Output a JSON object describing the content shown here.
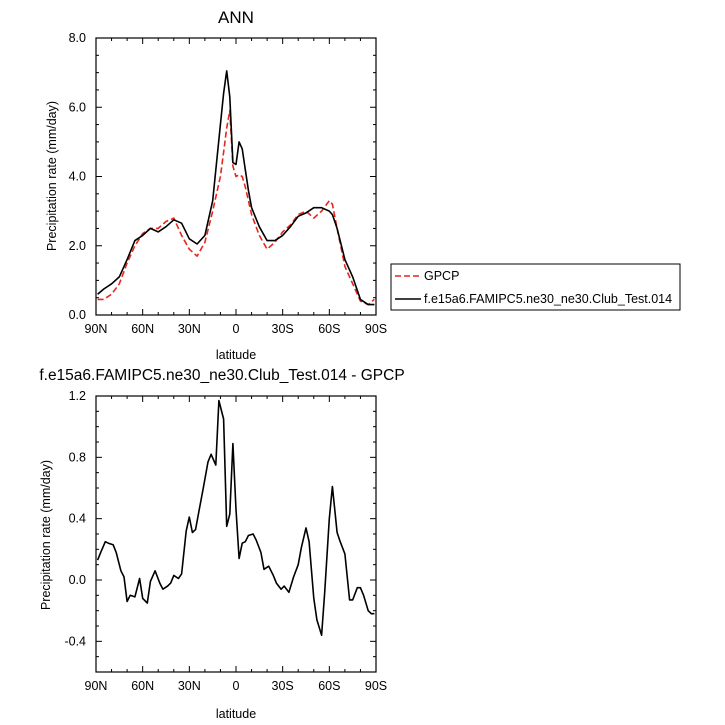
{
  "chart_data": [
    {
      "type": "line",
      "title": "ANN",
      "xlabel": "latitude",
      "ylabel": "Precipitation rate (mm/day)",
      "xlim": [
        90,
        -90
      ],
      "ylim": [
        0,
        8
      ],
      "x_ticks": [
        90,
        60,
        30,
        0,
        -30,
        -60,
        -90
      ],
      "x_tick_labels": [
        "90N",
        "60N",
        "30N",
        "0",
        "30S",
        "60S",
        "90S"
      ],
      "y_ticks": [
        0,
        2,
        4,
        6,
        8
      ],
      "y_tick_labels": [
        "0.0",
        "2.0",
        "4.0",
        "6.0",
        "8.0"
      ],
      "legend_position": "right, outside plot",
      "series": [
        {
          "name": "GPCP",
          "color": "#e8251f",
          "dash": "dashed",
          "x": [
            89,
            85,
            80,
            75,
            70,
            65,
            60,
            55,
            50,
            45,
            40,
            35,
            30,
            25,
            20,
            15,
            10,
            8,
            6,
            4,
            2,
            0,
            -2,
            -4,
            -6,
            -8,
            -10,
            -15,
            -20,
            -25,
            -30,
            -35,
            -40,
            -45,
            -50,
            -55,
            -60,
            -62,
            -65,
            -70,
            -75,
            -80,
            -85,
            -89
          ],
          "y": [
            0.45,
            0.45,
            0.6,
            0.9,
            1.5,
            2.0,
            2.35,
            2.5,
            2.5,
            2.7,
            2.8,
            2.3,
            1.9,
            1.7,
            2.1,
            3.0,
            4.0,
            4.7,
            5.4,
            5.9,
            4.3,
            4.0,
            4.05,
            4.0,
            3.7,
            3.3,
            2.9,
            2.3,
            1.9,
            2.1,
            2.4,
            2.6,
            2.9,
            3.0,
            2.8,
            3.0,
            3.3,
            3.2,
            2.5,
            1.4,
            0.9,
            0.4,
            0.3,
            0.45
          ]
        },
        {
          "name": "f.e15a6.FAMIPC5.ne30_ne30.Club_Test.014",
          "color": "#000000",
          "dash": "solid",
          "x": [
            89,
            85,
            80,
            75,
            70,
            65,
            60,
            55,
            50,
            45,
            40,
            35,
            30,
            25,
            20,
            15,
            10,
            8,
            6,
            4,
            2,
            0,
            -2,
            -4,
            -6,
            -8,
            -10,
            -15,
            -20,
            -25,
            -30,
            -35,
            -40,
            -45,
            -50,
            -55,
            -60,
            -62,
            -65,
            -70,
            -75,
            -80,
            -85,
            -89
          ],
          "y": [
            0.6,
            0.75,
            0.9,
            1.1,
            1.6,
            2.15,
            2.3,
            2.5,
            2.4,
            2.55,
            2.75,
            2.65,
            2.2,
            2.05,
            2.3,
            3.3,
            5.5,
            6.4,
            7.05,
            6.3,
            4.4,
            4.35,
            5.0,
            4.8,
            4.2,
            3.6,
            3.1,
            2.55,
            2.15,
            2.15,
            2.3,
            2.55,
            2.85,
            2.95,
            3.1,
            3.1,
            3.0,
            2.9,
            2.5,
            1.6,
            1.1,
            0.45,
            0.3,
            0.3
          ]
        }
      ]
    },
    {
      "type": "line",
      "title": "f.e15a6.FAMIPC5.ne30_ne30.Club_Test.014 - GPCP",
      "xlabel": "latitude",
      "ylabel": "Precipitation rate (mm/day)",
      "xlim": [
        90,
        -90
      ],
      "ylim": [
        -0.6,
        1.2
      ],
      "x_ticks": [
        90,
        60,
        30,
        0,
        -30,
        -60,
        -90
      ],
      "x_tick_labels": [
        "90N",
        "60N",
        "30N",
        "0",
        "30S",
        "60S",
        "90S"
      ],
      "y_ticks": [
        -0.4,
        0.0,
        0.4,
        0.8,
        1.2
      ],
      "y_tick_labels": [
        "-0.4",
        "0.0",
        "0.4",
        "0.8",
        "1.2"
      ],
      "series": [
        {
          "color": "#000000",
          "dash": "solid",
          "x": [
            89,
            87,
            84,
            82,
            79,
            77,
            74,
            72,
            70,
            68,
            65,
            62,
            60,
            57,
            55,
            52,
            49,
            47,
            44,
            42,
            40,
            37,
            35,
            32,
            30,
            28,
            26,
            24,
            21,
            18,
            16,
            13,
            11,
            8,
            6,
            4,
            2,
            0,
            -2,
            -4,
            -6,
            -8,
            -11,
            -13,
            -16,
            -18,
            -21,
            -24,
            -26,
            -29,
            -31,
            -34,
            -37,
            -40,
            -42,
            -45,
            -47,
            -50,
            -52,
            -55,
            -57,
            -60,
            -62,
            -65,
            -67,
            -70,
            -73,
            -75,
            -78,
            -80,
            -82,
            -85,
            -87,
            -89
          ],
          "y": [
            0.13,
            0.18,
            0.25,
            0.24,
            0.23,
            0.18,
            0.06,
            0.02,
            -0.14,
            -0.1,
            -0.11,
            0.01,
            -0.12,
            -0.15,
            -0.01,
            0.06,
            -0.02,
            -0.06,
            -0.04,
            -0.02,
            0.03,
            0.01,
            0.04,
            0.32,
            0.41,
            0.31,
            0.33,
            0.44,
            0.6,
            0.77,
            0.82,
            0.75,
            1.17,
            1.05,
            0.35,
            0.43,
            0.89,
            0.46,
            0.14,
            0.24,
            0.25,
            0.29,
            0.3,
            0.26,
            0.18,
            0.07,
            0.09,
            0.03,
            -0.02,
            -0.06,
            -0.04,
            -0.08,
            0.02,
            0.1,
            0.21,
            0.34,
            0.25,
            -0.12,
            -0.26,
            -0.36,
            -0.08,
            0.4,
            0.61,
            0.31,
            0.25,
            0.17,
            -0.13,
            -0.13,
            -0.05,
            -0.05,
            -0.1,
            -0.2,
            -0.22,
            -0.22
          ]
        }
      ]
    }
  ]
}
